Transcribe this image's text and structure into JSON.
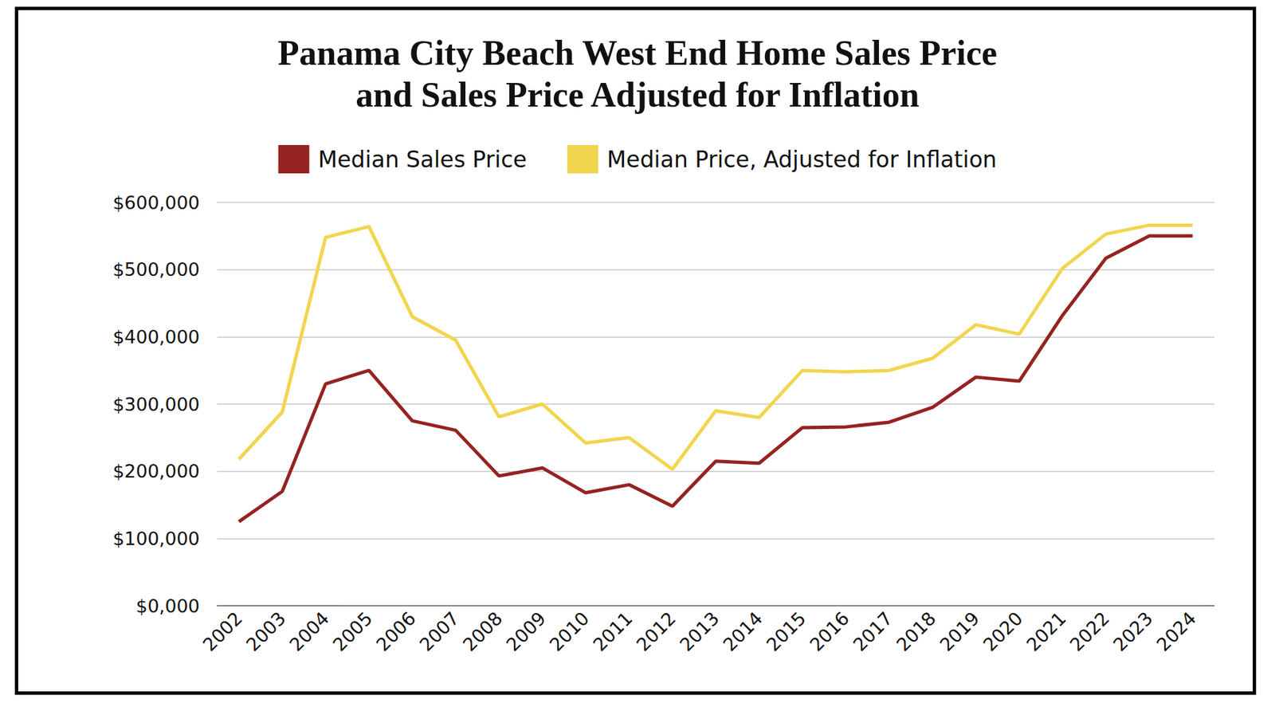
{
  "chart_data": {
    "type": "line",
    "title": "Panama City Beach West End Home Sales Price\nand Sales Price Adjusted for Inflation",
    "categories": [
      "2002",
      "2003",
      "2004",
      "2005",
      "2006",
      "2007",
      "2008",
      "2009",
      "2010",
      "2011",
      "2012",
      "2013",
      "2014",
      "2015",
      "2016",
      "2017",
      "2018",
      "2019",
      "2020",
      "2021",
      "2022",
      "2023",
      "2024"
    ],
    "series": [
      {
        "name": "Median Sales Price",
        "color": "#952320",
        "values": [
          125000,
          170000,
          330000,
          350000,
          275000,
          261000,
          193000,
          205000,
          168000,
          180000,
          148000,
          215000,
          212000,
          265000,
          266000,
          273000,
          295000,
          340000,
          334000,
          432000,
          517000,
          550000,
          550000
        ]
      },
      {
        "name": "Median Price, Adjusted for Inflation",
        "color": "#f2d54e",
        "values": [
          218000,
          288000,
          548000,
          564000,
          430000,
          395000,
          281000,
          300000,
          242000,
          250000,
          203000,
          290000,
          280000,
          350000,
          348000,
          350000,
          368000,
          418000,
          404000,
          502000,
          553000,
          566000,
          566000
        ]
      }
    ],
    "ylim": [
      0,
      600000
    ],
    "yticks": [
      {
        "value": 0,
        "label": "$0,000"
      },
      {
        "value": 100000,
        "label": "$100,000"
      },
      {
        "value": 200000,
        "label": "$200,000"
      },
      {
        "value": 300000,
        "label": "$300,000"
      },
      {
        "value": 400000,
        "label": "$400,000"
      },
      {
        "value": 500000,
        "label": "$500,000"
      },
      {
        "value": 600000,
        "label": "$600,000"
      }
    ],
    "grid": true,
    "legend": "top"
  }
}
